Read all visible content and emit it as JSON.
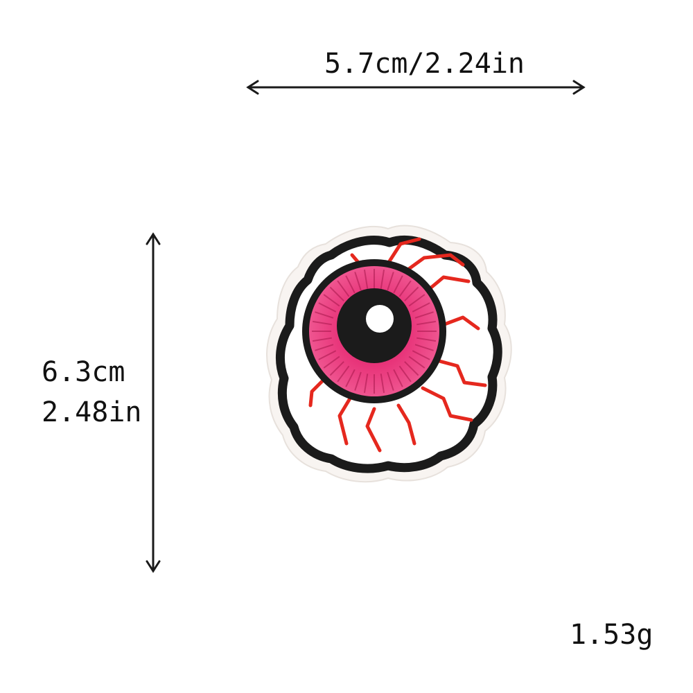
{
  "dimensions": {
    "width": "5.7cm/2.24in",
    "height_cm": "6.3cm",
    "height_in": "2.48in",
    "weight": "1.53g"
  },
  "icons": {
    "horizontal_arrow": "double-headed-arrow-horizontal",
    "vertical_arrow": "double-headed-arrow-vertical",
    "product": "eyeball-embroidered-patch"
  },
  "colors": {
    "outline": "#1a1a1a",
    "iris": "#e8357a",
    "iris_dark": "#b51c55",
    "veins": "#e5281e",
    "felt": "#fbf7f4",
    "background": "#ffffff"
  }
}
